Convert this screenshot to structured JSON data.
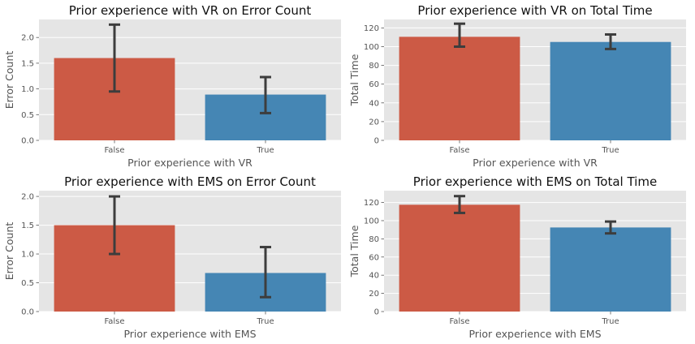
{
  "chart_data": [
    {
      "type": "bar",
      "title": "Prior experience with VR on Error Count",
      "xlabel": "Prior experience with VR",
      "ylabel": "Error Count",
      "categories": [
        "False",
        "True"
      ],
      "values": [
        1.6,
        0.89
      ],
      "error_bars": [
        [
          0.95,
          2.25
        ],
        [
          0.53,
          1.23
        ]
      ],
      "ylim": [
        0,
        2.35
      ],
      "yticks": [
        0.0,
        0.5,
        1.0,
        1.5,
        2.0
      ],
      "ytick_labels": [
        "0.0",
        "0.5",
        "1.0",
        "1.5",
        "2.0"
      ],
      "grid": true
    },
    {
      "type": "bar",
      "title": "Prior experience with VR on Total Time",
      "xlabel": "Prior experience with VR",
      "ylabel": "Total Time",
      "categories": [
        "False",
        "True"
      ],
      "values": [
        110.5,
        105
      ],
      "error_bars": [
        [
          100,
          124.5
        ],
        [
          97.5,
          113
        ]
      ],
      "ylim": [
        0,
        129
      ],
      "yticks": [
        0,
        20,
        40,
        60,
        80,
        100,
        120
      ],
      "ytick_labels": [
        "0",
        "20",
        "40",
        "60",
        "80",
        "100",
        "120"
      ],
      "grid": true
    },
    {
      "type": "bar",
      "title": "Prior experience with EMS on Error Count",
      "xlabel": "Prior experience with EMS",
      "ylabel": "Error Count",
      "categories": [
        "False",
        "True"
      ],
      "values": [
        1.5,
        0.67
      ],
      "error_bars": [
        [
          1.0,
          2.0
        ],
        [
          0.25,
          1.12
        ]
      ],
      "ylim": [
        0,
        2.1
      ],
      "yticks": [
        0.0,
        0.5,
        1.0,
        1.5,
        2.0
      ],
      "ytick_labels": [
        "0.0",
        "0.5",
        "1.0",
        "1.5",
        "2.0"
      ],
      "grid": true
    },
    {
      "type": "bar",
      "title": "Prior experience with EMS on Total Time",
      "xlabel": "Prior experience with EMS",
      "ylabel": "Total Time",
      "categories": [
        "False",
        "True"
      ],
      "values": [
        117.5,
        92.5
      ],
      "error_bars": [
        [
          108.5,
          127
        ],
        [
          86,
          99
        ]
      ],
      "ylim": [
        0,
        133
      ],
      "yticks": [
        0,
        20,
        40,
        60,
        80,
        100,
        120
      ],
      "ytick_labels": [
        "0",
        "20",
        "40",
        "60",
        "80",
        "100",
        "120"
      ],
      "grid": true
    }
  ],
  "colors": {
    "bar_false": "#cc5a45",
    "bar_true": "#4586b4",
    "axes_bg": "#e5e5e5",
    "grid": "#ffffff",
    "errorbar": "#3d3d3d"
  }
}
